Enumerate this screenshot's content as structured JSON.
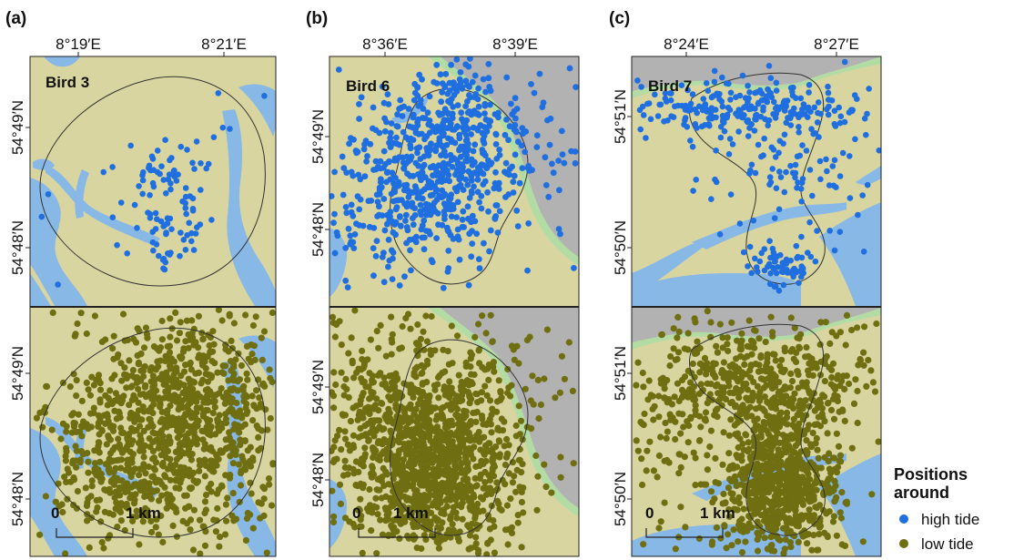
{
  "chart_data": [
    {
      "type": "scatter",
      "panel": "(a)",
      "bird": "Bird 3",
      "x_ticks": [
        "8°19′E",
        "8°21′E"
      ],
      "y_ticks_top": [
        "54°49′N",
        "54°48′N"
      ],
      "y_ticks_bottom": [
        "54°49′N",
        "54°48′N"
      ],
      "scale_bar": {
        "start": "0",
        "end": "1 km"
      },
      "series": [
        {
          "tide": "high tide",
          "count": 110
        },
        {
          "tide": "low tide",
          "count": 1200
        }
      ]
    },
    {
      "type": "scatter",
      "panel": "(b)",
      "bird": "Bird 6",
      "x_ticks": [
        "8°36′E",
        "8°39′E"
      ],
      "y_ticks_top": [
        "54°49′N",
        "54°48′N"
      ],
      "y_ticks_bottom": [
        "54°49′N",
        "54°48′N"
      ],
      "scale_bar": {
        "start": "0",
        "end": "1 km"
      },
      "series": [
        {
          "tide": "high tide",
          "count": 800
        },
        {
          "tide": "low tide",
          "count": 1500
        }
      ]
    },
    {
      "type": "scatter",
      "panel": "(c)",
      "bird": "Bird 7",
      "x_ticks": [
        "8°24′E",
        "8°27′E"
      ],
      "y_ticks_top": [
        "54°51′N",
        "54°50′N"
      ],
      "y_ticks_bottom": [
        "54°51′N",
        "54°50′N"
      ],
      "scale_bar": {
        "start": "0",
        "end": "1 km"
      },
      "series": [
        {
          "tide": "high tide",
          "count": 400
        },
        {
          "tide": "low tide",
          "count": 1400
        }
      ]
    }
  ],
  "legend": {
    "title": "Positions around",
    "items": [
      {
        "label": "high tide",
        "color": "#1f6fe0"
      },
      {
        "label": "low tide",
        "color": "#6f6f12"
      }
    ]
  },
  "colors": {
    "tidal_flat": "#d9d5a0",
    "water": "#87b8e6",
    "land": "#b2b2b2",
    "saltmarsh": "#b3dca5",
    "high_tide": "#1f6fe0",
    "low_tide": "#6f6f12",
    "home_range_line": "#333333"
  }
}
